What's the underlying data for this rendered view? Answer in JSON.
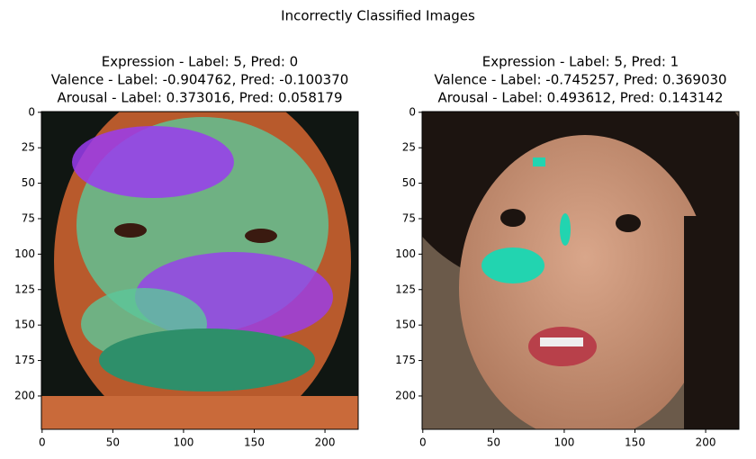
{
  "title": "Incorrectly Classified Images",
  "chart_data": [
    {
      "type": "image",
      "title": [
        "Expression - Label: 5, Pred: 0",
        "Valence - Label: -0.904762, Pred: -0.100370",
        "Arousal - Label: 0.373016, Pred: 0.058179"
      ],
      "xlim": [
        -0.5,
        223.5
      ],
      "ylim": [
        223.5,
        -0.5
      ],
      "xticks": [
        0,
        50,
        100,
        150,
        200
      ],
      "yticks": [
        0,
        25,
        50,
        75,
        100,
        125,
        150,
        175,
        200
      ]
    },
    {
      "type": "image",
      "title": [
        "Expression - Label: 5, Pred: 1",
        "Valence - Label: -0.745257, Pred: 0.369030",
        "Arousal - Label: 0.493612, Pred: 0.143142"
      ],
      "xlim": [
        -0.5,
        223.5
      ],
      "ylim": [
        223.5,
        -0.5
      ],
      "xticks": [
        0,
        50,
        100,
        150,
        200
      ],
      "yticks": [
        0,
        25,
        50,
        75,
        100,
        125,
        150,
        175,
        200
      ]
    }
  ]
}
